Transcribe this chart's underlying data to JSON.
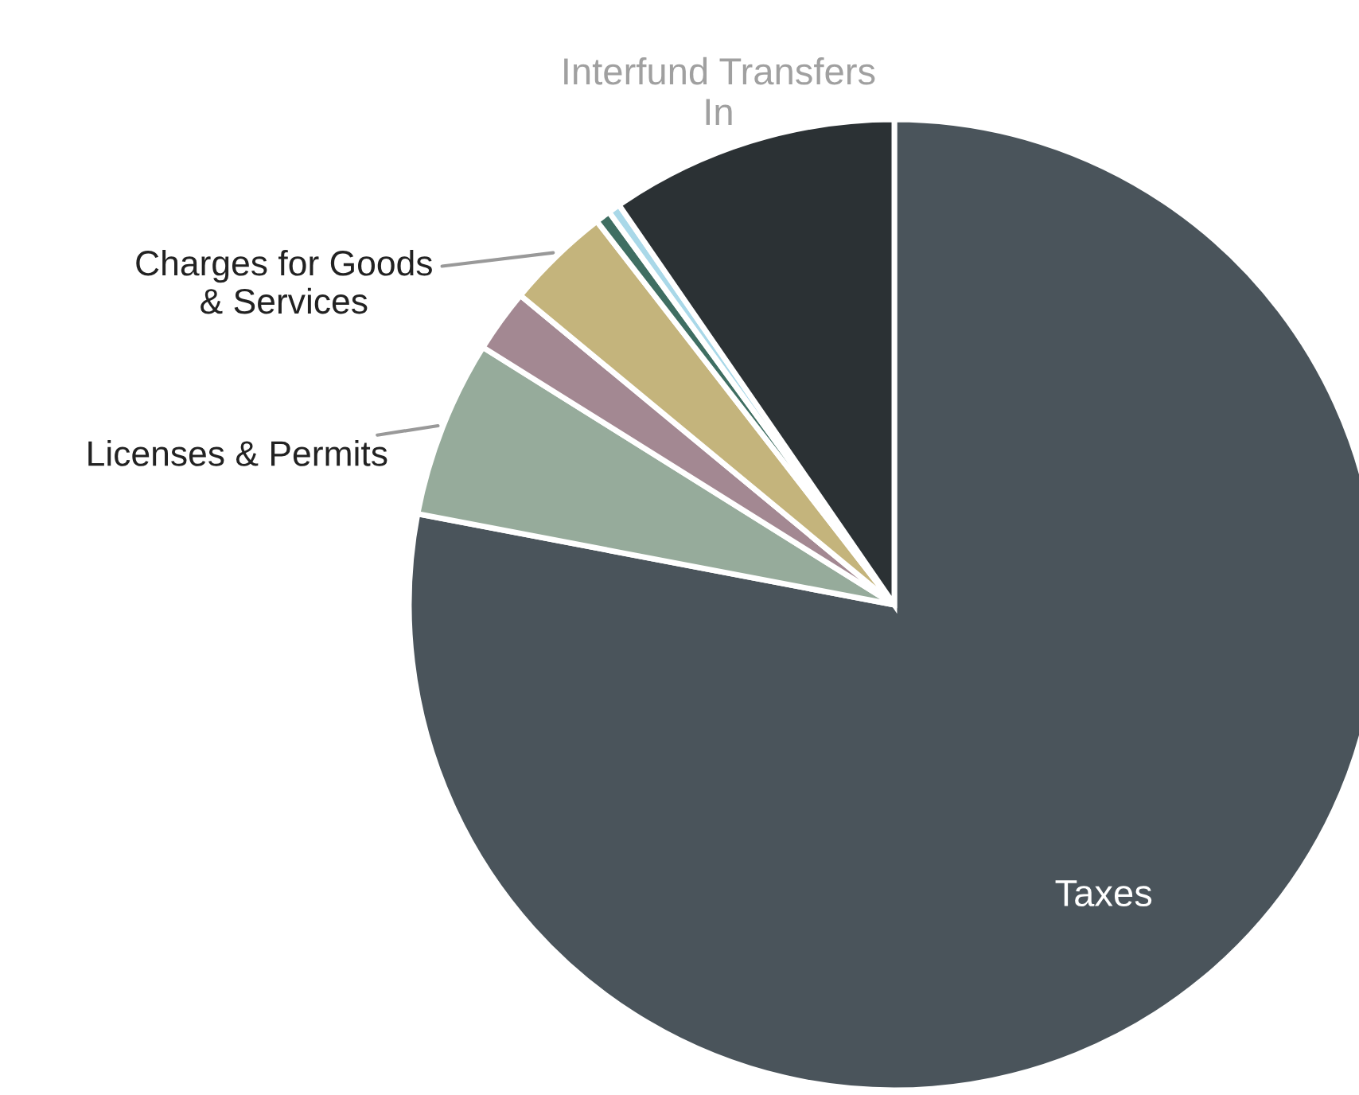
{
  "chart_data": {
    "type": "pie",
    "categories": [
      "Taxes",
      "Licenses & Permits",
      null,
      "Charges for Goods\n& Services",
      null,
      null,
      "Interfund Transfers\nIn"
    ],
    "values": [
      78.0,
      5.9,
      2.1,
      3.5,
      0.5,
      0.4,
      9.6
    ],
    "colors": [
      "#4a545b",
      "#96ab9b",
      "#a38892",
      "#c4b47c",
      "#3f6e62",
      "#a9d8e8",
      "#2b3134"
    ],
    "legend": false
  }
}
